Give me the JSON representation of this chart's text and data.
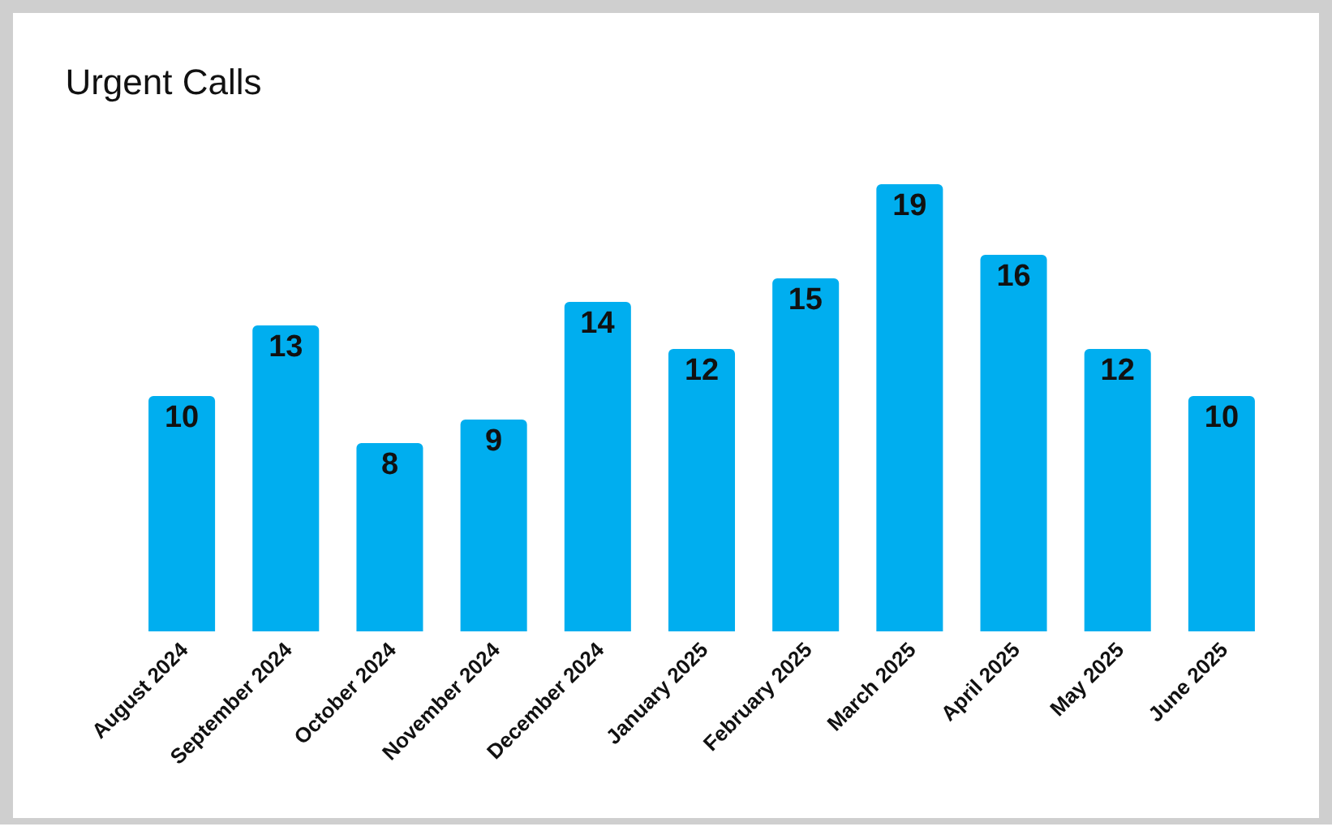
{
  "chart_data": {
    "type": "bar",
    "title": "Urgent Calls",
    "categories": [
      "August 2024",
      "September 2024",
      "October 2024",
      "November 2024",
      "December 2024",
      "January 2025",
      "February 2025",
      "March 2025",
      "April 2025",
      "May 2025",
      "June 2025"
    ],
    "values": [
      10,
      13,
      8,
      9,
      14,
      12,
      15,
      19,
      16,
      12,
      10
    ],
    "color": "#00aeef",
    "data_labels": true,
    "tick_labels": "x",
    "grid": false,
    "legend": false
  }
}
